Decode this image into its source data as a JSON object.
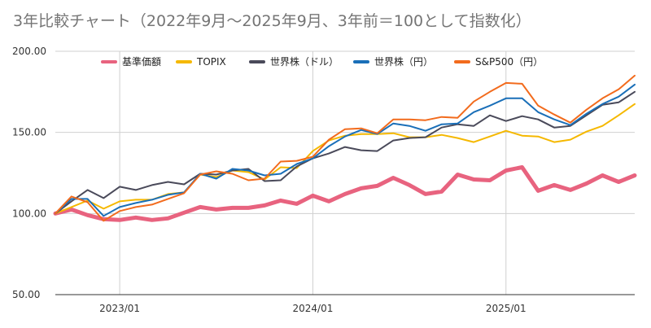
{
  "chart_data": {
    "type": "line",
    "title": "3年比較チャート（2022年9月～2025年9月、3年前＝100として指数化）",
    "xlabel": "",
    "ylabel": "",
    "ylim": [
      50,
      200
    ],
    "yticks": [
      "50.00",
      "100.00",
      "150.00",
      "200.00"
    ],
    "xticks": [
      {
        "label": "2023/01",
        "month": 4
      },
      {
        "label": "2024/01",
        "month": 16
      },
      {
        "label": "2025/01",
        "month": 28
      }
    ],
    "x_start": "2022/09",
    "x_end": "2025/09",
    "x_count": 37,
    "grid": true,
    "legend_position": "top",
    "series": [
      {
        "name": "基準価額",
        "color": "#e8637f",
        "width": 5,
        "values": [
          100,
          102.5,
          99,
          96.5,
          96,
          97.5,
          96,
          97,
          100.5,
          104,
          102.5,
          103.5,
          103.5,
          105,
          108,
          106,
          111,
          107.5,
          112,
          115.5,
          117,
          122,
          117.5,
          112,
          113.5,
          124,
          121,
          120.5,
          126.5,
          128.5,
          114,
          117.5,
          114.5,
          118.5,
          123.5,
          119.5,
          123.5
        ]
      },
      {
        "name": "TOPIX",
        "color": "#f5b800",
        "width": 2,
        "values": [
          100,
          104,
          108,
          103,
          107.5,
          108.5,
          108.5,
          112,
          113,
          124,
          122.5,
          126.5,
          125.5,
          121,
          128.5,
          128,
          138.5,
          145,
          148,
          149,
          149,
          149.5,
          147,
          147,
          148.5,
          146.5,
          144,
          147.5,
          151,
          148,
          147.5,
          144,
          145.5,
          150.5,
          154,
          160.5,
          167.5
        ]
      },
      {
        "name": "世界株（ドル）",
        "color": "#4a4a5a",
        "width": 2,
        "values": [
          100,
          107.5,
          114.5,
          109.5,
          116.5,
          114.5,
          117.5,
          119.5,
          118,
          124.5,
          124,
          126.5,
          127.5,
          120,
          120.5,
          129,
          134,
          137,
          141,
          139,
          138.5,
          145,
          146.5,
          147,
          153,
          155,
          154,
          160.5,
          157,
          160,
          158,
          153,
          154,
          160.5,
          167,
          168.5,
          175
        ]
      },
      {
        "name": "世界株（円）",
        "color": "#1a6fb8",
        "width": 2,
        "values": [
          100,
          109,
          109,
          98.5,
          104,
          106.5,
          108.5,
          111.5,
          113,
          124.5,
          121.5,
          127.5,
          126.5,
          123.5,
          124.5,
          130.5,
          134,
          141.5,
          147.5,
          151.5,
          149,
          155.5,
          154,
          151,
          155,
          155.5,
          162.5,
          166.5,
          171,
          171,
          162.5,
          158,
          154.5,
          161.5,
          167.5,
          172,
          179.5
        ]
      },
      {
        "name": "S&P500（円）",
        "color": "#f26b1d",
        "width": 2,
        "values": [
          100,
          110.5,
          107,
          95.5,
          101.5,
          104,
          105.5,
          109,
          112.5,
          124,
          126,
          124.5,
          120.5,
          121.5,
          132,
          132.5,
          135,
          145.5,
          152,
          152.5,
          149.5,
          158,
          158,
          157.5,
          159.5,
          159,
          169,
          175,
          180.5,
          180,
          166.5,
          161,
          156,
          164,
          171,
          176.5,
          185
        ]
      }
    ]
  }
}
